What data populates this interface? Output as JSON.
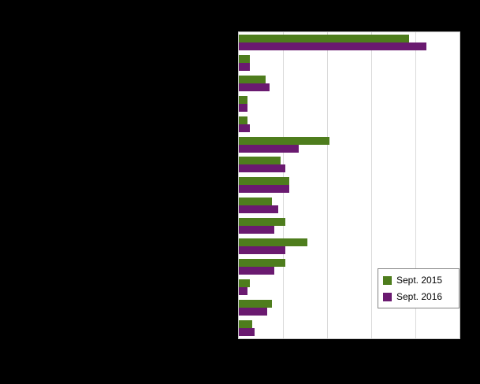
{
  "legend": {
    "items": [
      {
        "label": "Sept. 2015",
        "color": "#4e7d1d"
      },
      {
        "label": "Sept. 2016",
        "color": "#6a1a70"
      }
    ]
  },
  "colors": {
    "page_background": "#000000",
    "plot_background": "#ffffff",
    "gridline": "#d9d9d9"
  },
  "chart_data": {
    "type": "bar",
    "orientation": "horizontal",
    "title": "",
    "categories": [
      "",
      "",
      "",
      "",
      "",
      "",
      "",
      "",
      "",
      "",
      "",
      "",
      "",
      "",
      ""
    ],
    "categories_visible": false,
    "axis_labels_visible": false,
    "series": [
      {
        "name": "Sept. 2015",
        "color": "#4e7d1d",
        "values": [
          77,
          5,
          12,
          4,
          4,
          41,
          19,
          23,
          15,
          21,
          31,
          21,
          5,
          15,
          6
        ]
      },
      {
        "name": "Sept. 2016",
        "color": "#6a1a70",
        "values": [
          85,
          5,
          14,
          4,
          5,
          27,
          21,
          23,
          18,
          16,
          21,
          16,
          4,
          13,
          7
        ]
      }
    ],
    "xlim": [
      0,
      100
    ],
    "gridline_interval": 20,
    "grid": true,
    "legend_position": "inside-bottom-right"
  }
}
